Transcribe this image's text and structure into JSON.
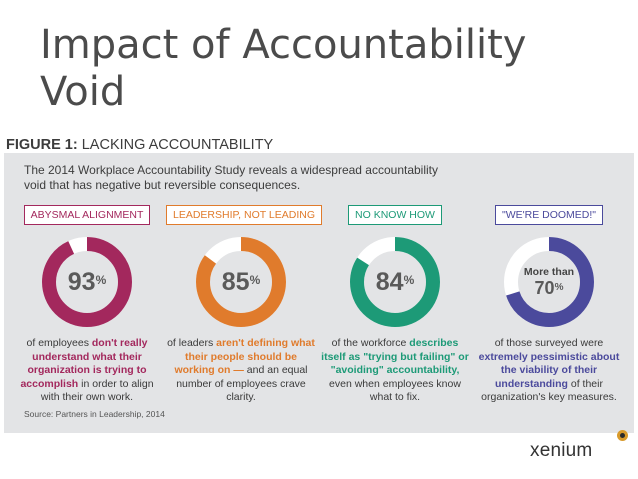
{
  "slide": {
    "title": "Impact of Accountability Void"
  },
  "figure": {
    "label": "FIGURE 1:",
    "heading": "LACKING ACCOUNTABILITY",
    "intro": "The 2014 Workplace Accountability Study reveals a widespread accountability void that has negative but reversible consequences.",
    "source": "Source: Partners in Leadership, 2014"
  },
  "stats": [
    {
      "label": "ABYSMAL ALIGNMENT",
      "value": 93,
      "value_text": "93",
      "unit": "%",
      "color": "#a3285d",
      "desc_pre": "of employees ",
      "desc_hl": "don't really understand what their organization is trying to accomplish",
      "desc_post": " in order to align with their own work."
    },
    {
      "label": "LEADERSHIP, NOT LEADING",
      "value": 85,
      "value_text": "85",
      "unit": "%",
      "color": "#e07b2c",
      "desc_pre": "of leaders ",
      "desc_hl": "aren't defining what their people should be working on —",
      "desc_post": " and an equal number of employees crave clarity."
    },
    {
      "label": "NO KNOW HOW",
      "value": 84,
      "value_text": "84",
      "unit": "%",
      "color": "#1d9a77",
      "desc_pre": "of the workforce ",
      "desc_hl": "describes itself as \"trying but failing\" or \"avoiding\" accountability,",
      "desc_post": " even when employees know what to fix."
    },
    {
      "label": "\"WE'RE DOOMED!\"",
      "value": 70,
      "value_prefix": "More than",
      "value_text": "70",
      "unit": "%",
      "color": "#4b4a9c",
      "desc_pre": "of those surveyed were ",
      "desc_hl": "extremely pessimistic about the viability of their understanding",
      "desc_post": " of their organization's key measures."
    }
  ],
  "brand": {
    "name": "xenium",
    "logo_icon": "xenium-logo-icon"
  }
}
